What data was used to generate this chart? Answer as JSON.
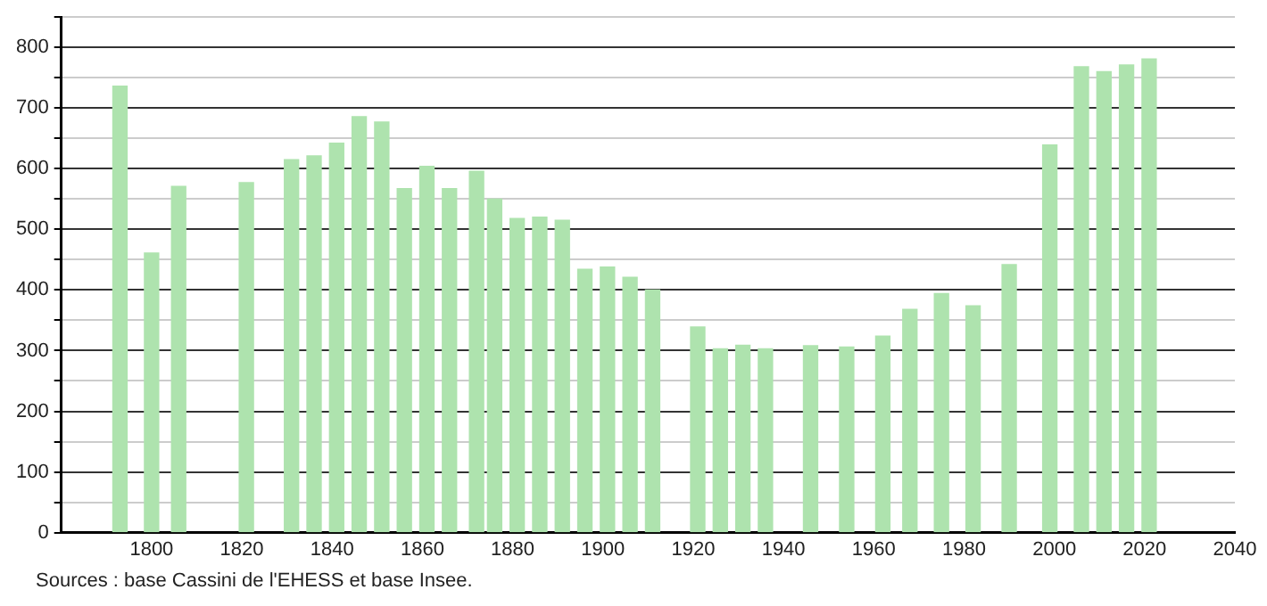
{
  "chart_data": {
    "type": "bar",
    "color": "#aee3ae",
    "x": [
      1793,
      1800,
      1806,
      1821,
      1831,
      1836,
      1841,
      1846,
      1851,
      1856,
      1861,
      1866,
      1872,
      1876,
      1881,
      1886,
      1891,
      1896,
      1901,
      1906,
      1911,
      1921,
      1926,
      1931,
      1936,
      1946,
      1954,
      1962,
      1968,
      1975,
      1982,
      1990,
      1999,
      2006,
      2011,
      2016,
      2021
    ],
    "values": [
      736,
      461,
      571,
      577,
      615,
      621,
      642,
      686,
      677,
      567,
      604,
      567,
      596,
      550,
      518,
      520,
      515,
      434,
      438,
      421,
      400,
      339,
      303,
      309,
      303,
      308,
      306,
      324,
      368,
      394,
      374,
      442,
      639,
      768,
      760,
      771,
      781
    ],
    "xlim": [
      1780,
      2040
    ],
    "xticks": [
      1800,
      1820,
      1840,
      1860,
      1880,
      1900,
      1920,
      1940,
      1960,
      1980,
      2000,
      2020,
      2040
    ],
    "ylim": [
      0,
      850
    ],
    "yticks": [
      0,
      {
        "value": 50,
        "label": null
      },
      100,
      {
        "value": 150,
        "label": null
      },
      200,
      {
        "value": 250,
        "label": null
      },
      300,
      {
        "value": 350,
        "label": null
      },
      400,
      {
        "value": 450,
        "label": null
      },
      500,
      {
        "value": 550,
        "label": null
      },
      600,
      {
        "value": 650,
        "label": null
      },
      700,
      {
        "value": 750,
        "label": null
      },
      800,
      {
        "value": 850,
        "label": null
      }
    ],
    "grid": "y",
    "legend": false,
    "annotations": [
      "Sources : base Cassini de l'EHESS et base Insee."
    ]
  }
}
